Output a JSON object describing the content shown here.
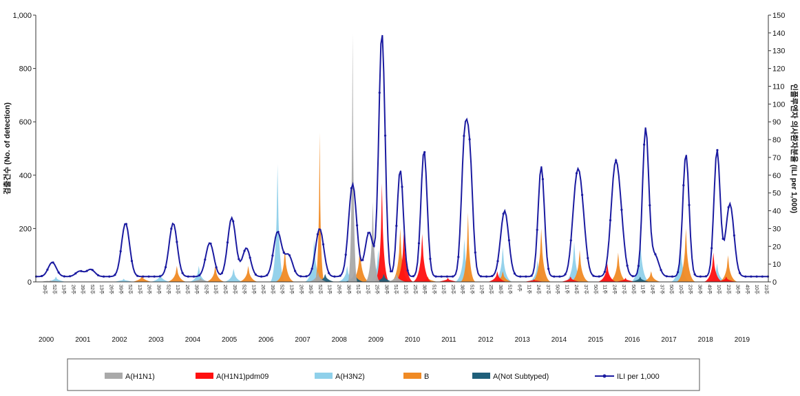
{
  "colors": {
    "h1n1": "#a9a9a9",
    "h1n1pdm": "#ff1010",
    "h3n2": "#8fd0ea",
    "b": "#f08a24",
    "not_subtyped": "#1f5f7a",
    "ili": "#1a1aa0"
  },
  "chart_data": {
    "type": "area",
    "ylabel_left": "검출건수 (No. of detection)",
    "ylabel_right": "인플루엔자 의사환자분율 (ILI per 1,000)",
    "yleft_lim": [
      0,
      1000
    ],
    "yright_lim": [
      0,
      150
    ],
    "yleft_ticks": [
      "0",
      "200",
      "400",
      "600",
      "800",
      "1,000"
    ],
    "yright_ticks": [
      "0",
      "10",
      "20",
      "30",
      "40",
      "50",
      "60",
      "70",
      "80",
      "90",
      "100",
      "110",
      "120",
      "130",
      "140",
      "150"
    ],
    "year_labels": [
      "2000",
      "2001",
      "2002",
      "2003",
      "2004",
      "2005",
      "2006",
      "2007",
      "2008",
      "2009",
      "2010",
      "2011",
      "2012",
      "2013",
      "2014",
      "2015",
      "2016",
      "2017",
      "2018",
      "2019"
    ],
    "week_labels": [
      "39주",
      "52주",
      "13주",
      "26주",
      "39주",
      "52주",
      "13주",
      "26주",
      "39주",
      "52주",
      "13주",
      "26주",
      "39주",
      "52주",
      "13주",
      "26주",
      "39주",
      "52주",
      "13주",
      "26주",
      "39주",
      "52주",
      "13주",
      "26주",
      "39주",
      "52주",
      "13주",
      "26주",
      "39주",
      "52주",
      "13주",
      "26주",
      "38주",
      "51주",
      "12주",
      "25주",
      "38주",
      "51주",
      "12주",
      "25주",
      "38주",
      "51주",
      "12주",
      "25주",
      "38주",
      "51주",
      "12주",
      "25주",
      "38주",
      "51주",
      "6주",
      "11주",
      "24주",
      "37주",
      "50주",
      "11주",
      "24주",
      "37주",
      "50주",
      "11주",
      "24주",
      "37주",
      "50주",
      "11주",
      "24주",
      "37주",
      "50주",
      "10주",
      "23주",
      "36주",
      "49주",
      "10주",
      "23주",
      "36주",
      "49주",
      "10주",
      "23주"
    ],
    "x_unit": "season_index",
    "legend": [
      "A(H1N1)",
      "A(H1N1)pdm09",
      "A(H3N2)",
      "B",
      "A(Not Subtyped)",
      "ILI per 1,000"
    ],
    "legend_position": "bottom",
    "series": [
      {
        "name": "A(H1N1)",
        "peaks": [
          [
            0.4,
            5
          ],
          [
            4.5,
            15
          ],
          [
            7.7,
            40
          ],
          [
            8.65,
            930
          ],
          [
            9.2,
            300
          ],
          [
            9.85,
            30
          ]
        ]
      },
      {
        "name": "A(H1N1)pdm09",
        "peaks": [
          [
            9.45,
            370
          ],
          [
            10.05,
            190
          ],
          [
            10.55,
            180
          ],
          [
            11.25,
            15
          ],
          [
            12.6,
            40
          ],
          [
            13.6,
            10
          ],
          [
            14.6,
            20
          ],
          [
            15.6,
            70
          ],
          [
            16.1,
            15
          ],
          [
            18.5,
            110
          ],
          [
            18.85,
            20
          ]
        ]
      },
      {
        "name": "A(H3N2)",
        "peaks": [
          [
            0.55,
            20
          ],
          [
            2.4,
            12
          ],
          [
            3.4,
            30
          ],
          [
            4.45,
            60
          ],
          [
            5.4,
            50
          ],
          [
            6.6,
            440
          ],
          [
            7.6,
            160
          ],
          [
            8.5,
            60
          ],
          [
            9.35,
            120
          ],
          [
            11.7,
            160
          ],
          [
            12.75,
            130
          ],
          [
            13.7,
            80
          ],
          [
            14.7,
            150
          ],
          [
            15.6,
            40
          ],
          [
            16.5,
            180
          ],
          [
            17.6,
            160
          ],
          [
            18.6,
            70
          ]
        ]
      },
      {
        "name": "B",
        "peaks": [
          [
            2.9,
            25
          ],
          [
            3.85,
            60
          ],
          [
            4.9,
            60
          ],
          [
            5.8,
            60
          ],
          [
            6.8,
            120
          ],
          [
            7.75,
            560
          ],
          [
            8.85,
            130
          ],
          [
            9.95,
            200
          ],
          [
            10.7,
            20
          ],
          [
            11.8,
            260
          ],
          [
            12.75,
            40
          ],
          [
            13.8,
            200
          ],
          [
            14.85,
            120
          ],
          [
            15.9,
            110
          ],
          [
            16.8,
            40
          ],
          [
            17.75,
            200
          ],
          [
            18.9,
            100
          ]
        ]
      },
      {
        "name": "A(Not Subtyped)",
        "peaks": [
          [
            7.9,
            30
          ],
          [
            8.7,
            40
          ],
          [
            9.5,
            30
          ],
          [
            16.5,
            20
          ]
        ]
      },
      {
        "name": "ILI per 1,000",
        "peaks": [
          [
            0.45,
            11
          ],
          [
            1.2,
            6
          ],
          [
            1.5,
            7
          ],
          [
            2.45,
            33
          ],
          [
            3.75,
            33
          ],
          [
            4.75,
            22
          ],
          [
            5.35,
            36
          ],
          [
            5.75,
            19
          ],
          [
            6.6,
            28
          ],
          [
            6.9,
            15
          ],
          [
            7.75,
            30
          ],
          [
            8.65,
            55
          ],
          [
            9.1,
            28
          ],
          [
            9.45,
            140
          ],
          [
            9.95,
            63
          ],
          [
            10.6,
            74
          ],
          [
            11.7,
            72
          ],
          [
            11.85,
            64
          ],
          [
            12.8,
            40
          ],
          [
            13.8,
            65
          ],
          [
            14.75,
            46
          ],
          [
            14.9,
            36
          ],
          [
            15.8,
            54
          ],
          [
            15.95,
            32
          ],
          [
            16.65,
            86
          ],
          [
            16.9,
            15
          ],
          [
            17.75,
            72
          ],
          [
            18.6,
            74
          ],
          [
            18.95,
            44
          ]
        ]
      }
    ]
  },
  "legend": {
    "h1n1": "A(H1N1)",
    "h1n1pdm": "A(H1N1)pdm09",
    "h3n2": "A(H3N2)",
    "b": "B",
    "not_subtyped": "A(Not Subtyped)",
    "ili": "ILI per 1,000"
  }
}
